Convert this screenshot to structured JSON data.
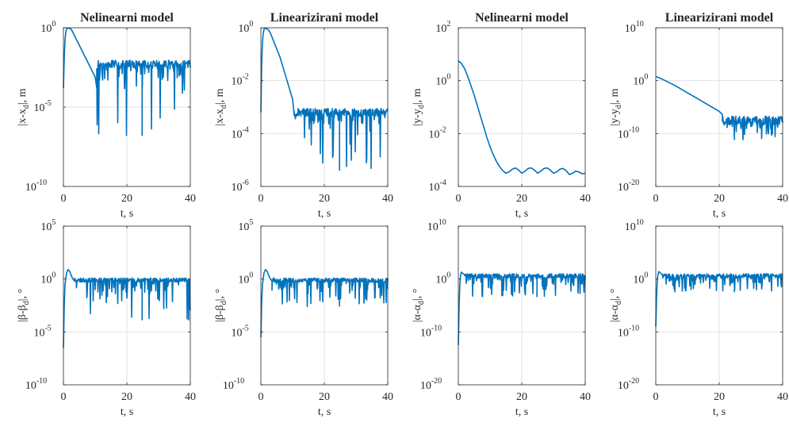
{
  "chart_data": [
    {
      "type": "line",
      "title": "Nelinearni model",
      "xlabel": "t, s",
      "ylabel": {
        "pre": "|x-x",
        "sub": "d",
        "post": "|, m"
      },
      "xlim": [
        0,
        40
      ],
      "xticks": [
        "0",
        "20",
        "40"
      ],
      "ylim_exp": [
        -10,
        0
      ],
      "yticks": [
        {
          "base": "10",
          "exp": "-10",
          "e": -10
        },
        {
          "base": "10",
          "exp": "-5",
          "e": -5
        },
        {
          "base": "10",
          "exp": "0",
          "e": 0
        }
      ],
      "grid": true,
      "color": "#0072BD",
      "series": [
        {
          "x": [
            0,
            0.3,
            0.6,
            1,
            1.5,
            2,
            2.5,
            3,
            4,
            5,
            6,
            7,
            8,
            9,
            10,
            10.5,
            11,
            12,
            14,
            16,
            18,
            20,
            22,
            24,
            26,
            28,
            30,
            32,
            34,
            36,
            38,
            40
          ],
          "y_log10": [
            -3.8,
            -1.5,
            -0.4,
            -0.05,
            0,
            -0.05,
            -0.1,
            -0.3,
            -0.7,
            -1.1,
            -1.5,
            -1.9,
            -2.3,
            -2.7,
            -3.1,
            -3.8,
            -2.2,
            -2.2,
            -2.2,
            -2.2,
            -2.2,
            -2.2,
            -2.2,
            -2.2,
            -2.2,
            -2.2,
            -2.2,
            -2.2,
            -2.2,
            -2.2,
            -2.2,
            -2.2
          ]
        }
      ],
      "noise": {
        "from": 10.5,
        "center": -2.3,
        "amp": 0.25,
        "spike_depth": [
          -3.3,
          -6.8
        ],
        "spike_min": -6.8
      }
    },
    {
      "type": "line",
      "title": "Linearizirani model",
      "xlabel": "t, s",
      "ylabel": {
        "pre": "|x-x",
        "sub": "d",
        "post": "|, m"
      },
      "xlim": [
        0,
        40
      ],
      "xticks": [
        "0",
        "20",
        "40"
      ],
      "ylim_exp": [
        -6,
        0
      ],
      "yticks": [
        {
          "base": "10",
          "exp": "-6",
          "e": -6
        },
        {
          "base": "10",
          "exp": "-4",
          "e": -4
        },
        {
          "base": "10",
          "exp": "-2",
          "e": -2
        },
        {
          "base": "10",
          "exp": "0",
          "e": 0
        }
      ],
      "grid": true,
      "color": "#0072BD",
      "series": [
        {
          "x": [
            0,
            0.3,
            0.6,
            1,
            1.5,
            2,
            2.5,
            3,
            4,
            5,
            6,
            7,
            8,
            9,
            10,
            10.5,
            11,
            12,
            14,
            16,
            18,
            20,
            22,
            24,
            26,
            28,
            30,
            32,
            34,
            36,
            38,
            40
          ],
          "y_log10": [
            -3.2,
            -1.0,
            -0.3,
            -0.05,
            0,
            -0.05,
            -0.1,
            -0.2,
            -0.5,
            -0.8,
            -1.1,
            -1.5,
            -1.9,
            -2.3,
            -2.7,
            -3.3,
            -3.1,
            -3.1,
            -3.1,
            -3.1,
            -3.1,
            -3.1,
            -3.1,
            -3.1,
            -3.1,
            -3.1,
            -3.1,
            -3.1,
            -3.1,
            -3.1,
            -3.1,
            -3.1
          ]
        }
      ],
      "noise": {
        "from": 10.5,
        "center": -3.2,
        "amp": 0.15,
        "spike_depth": [
          -3.6,
          -5.4
        ],
        "spike_min": -5.4
      }
    },
    {
      "type": "line",
      "title": "Nelinearni model",
      "xlabel": "t, s",
      "ylabel": {
        "pre": "|y-y",
        "sub": "d",
        "post": "|, m"
      },
      "xlim": [
        0,
        40
      ],
      "xticks": [
        "0",
        "20",
        "40"
      ],
      "ylim_exp": [
        -4,
        2
      ],
      "yticks": [
        {
          "base": "10",
          "exp": "-4",
          "e": -4
        },
        {
          "base": "10",
          "exp": "-2",
          "e": -2
        },
        {
          "base": "10",
          "exp": "0",
          "e": 0
        },
        {
          "base": "10",
          "exp": "2",
          "e": 2
        }
      ],
      "grid": true,
      "color": "#0072BD",
      "series": [
        {
          "x": [
            0,
            1,
            2,
            3,
            4,
            5,
            6,
            7,
            8,
            9,
            10,
            11,
            12,
            13,
            14,
            15,
            16,
            17,
            18,
            19,
            20,
            21,
            22,
            23,
            24,
            25,
            26,
            27,
            28,
            29,
            30,
            31,
            32,
            33,
            34,
            35,
            36,
            37,
            38,
            39,
            40
          ],
          "y_log10": [
            0.75,
            0.65,
            0.45,
            0.15,
            -0.2,
            -0.55,
            -0.95,
            -1.35,
            -1.75,
            -2.15,
            -2.5,
            -2.8,
            -3.05,
            -3.25,
            -3.4,
            -3.5,
            -3.45,
            -3.35,
            -3.3,
            -3.38,
            -3.5,
            -3.42,
            -3.32,
            -3.3,
            -3.38,
            -3.5,
            -3.42,
            -3.32,
            -3.3,
            -3.38,
            -3.5,
            -3.45,
            -3.35,
            -3.32,
            -3.4,
            -3.55,
            -3.5,
            -3.42,
            -3.45,
            -3.52,
            -3.5
          ]
        }
      ]
    },
    {
      "type": "line",
      "title": "Linearizirani model",
      "xlabel": "t, s",
      "ylabel": {
        "pre": "|y-y",
        "sub": "d",
        "post": "|, m"
      },
      "xlim": [
        0,
        40
      ],
      "xticks": [
        "0",
        "20",
        "40"
      ],
      "ylim_exp": [
        -20,
        10
      ],
      "yticks": [
        {
          "base": "10",
          "exp": "-20",
          "e": -20
        },
        {
          "base": "10",
          "exp": "-10",
          "e": -10
        },
        {
          "base": "10",
          "exp": "0",
          "e": 0
        },
        {
          "base": "10",
          "exp": "10",
          "e": 10
        }
      ],
      "grid": true,
      "color": "#0072BD",
      "series": [
        {
          "x": [
            0,
            2,
            4,
            6,
            8,
            10,
            12,
            14,
            16,
            18,
            20,
            22,
            24,
            26,
            28,
            30,
            32,
            34,
            36,
            38,
            40
          ],
          "y_log10": [
            0.8,
            0.3,
            -0.3,
            -0.9,
            -1.6,
            -2.3,
            -3,
            -3.7,
            -4.4,
            -5.1,
            -5.8,
            -7,
            -7.3,
            -7.3,
            -7.3,
            -7.3,
            -7.3,
            -7.3,
            -7.3,
            -7.3,
            -7.3
          ]
        }
      ],
      "noise": {
        "from": 21,
        "center": -7.5,
        "amp": 0.8,
        "spike_depth": [
          -8.5,
          -11.2
        ],
        "spike_min": -11.2
      }
    },
    {
      "type": "line",
      "title": "",
      "xlabel": "t, s",
      "ylabel": {
        "pre": "|β-β",
        "sub": "d",
        "post": "|, °"
      },
      "xlim": [
        0,
        40
      ],
      "xticks": [
        "0",
        "20",
        "40"
      ],
      "ylim_exp": [
        -10,
        5
      ],
      "yticks": [
        {
          "base": "10",
          "exp": "-10",
          "e": -10
        },
        {
          "base": "10",
          "exp": "-5",
          "e": -5
        },
        {
          "base": "10",
          "exp": "0",
          "e": 0
        },
        {
          "base": "10",
          "exp": "5",
          "e": 5
        }
      ],
      "grid": true,
      "color": "#0072BD",
      "series": [
        {
          "x": [
            0,
            0.2,
            0.5,
            1,
            1.5,
            2,
            2.5,
            3,
            3.5,
            4,
            5,
            6,
            40
          ],
          "y_log10": [
            -6.5,
            -3,
            -0.5,
            0.6,
            0.9,
            0.7,
            0.3,
            0,
            -0.2,
            -0.1,
            -0.1,
            -0.1,
            -0.1
          ]
        }
      ],
      "noise": {
        "from": 3.5,
        "center": -0.1,
        "amp": 0.2,
        "spike_depth": [
          -1.5,
          -3.9
        ],
        "spike_min": -3.9
      }
    },
    {
      "type": "line",
      "title": "",
      "xlabel": "t, s",
      "ylabel": {
        "pre": "|β-β",
        "sub": "d",
        "post": "|, °"
      },
      "xlim": [
        0,
        40
      ],
      "xticks": [
        "0",
        "20",
        "40"
      ],
      "ylim_exp": [
        -10,
        5
      ],
      "yticks": [
        {
          "base": "10",
          "exp": "-10",
          "e": -10
        },
        {
          "base": "10",
          "exp": "-5",
          "e": -5
        },
        {
          "base": "10",
          "exp": "0",
          "e": 0
        },
        {
          "base": "10",
          "exp": "5",
          "e": 5
        }
      ],
      "grid": true,
      "color": "#0072BD",
      "series": [
        {
          "x": [
            0,
            0.2,
            0.5,
            1,
            1.5,
            2,
            2.5,
            3,
            3.5,
            4,
            5,
            6,
            40
          ],
          "y_log10": [
            -5.5,
            -2.5,
            -0.5,
            0.6,
            0.9,
            0.7,
            0.3,
            0,
            -0.2,
            -0.1,
            -0.1,
            -0.1,
            -0.1
          ]
        }
      ],
      "noise": {
        "from": 3.5,
        "center": -0.1,
        "amp": 0.2,
        "spike_depth": [
          -1.2,
          -2.6
        ],
        "spike_min": -2.6
      }
    },
    {
      "type": "line",
      "title": "",
      "xlabel": "t, s",
      "ylabel": {
        "pre": "|α-α",
        "sub": "d",
        "post": "|, °"
      },
      "xlim": [
        0,
        40
      ],
      "xticks": [
        "0",
        "20",
        "40"
      ],
      "ylim_exp": [
        -20,
        10
      ],
      "yticks": [
        {
          "base": "10",
          "exp": "-20",
          "e": -20
        },
        {
          "base": "10",
          "exp": "-10",
          "e": -10
        },
        {
          "base": "10",
          "exp": "0",
          "e": 0
        },
        {
          "base": "10",
          "exp": "10",
          "e": 10
        }
      ],
      "grid": true,
      "color": "#0072BD",
      "series": [
        {
          "x": [
            0,
            0.2,
            0.4,
            0.7,
            1,
            1.5,
            2,
            40
          ],
          "y_log10": [
            -12.5,
            -6,
            -1.5,
            0.8,
            1.3,
            1,
            0.8,
            0.8
          ]
        }
      ],
      "noise": {
        "from": 2,
        "center": 0.6,
        "amp": 0.4,
        "spike_depth": [
          -1.5,
          -3.4
        ],
        "spike_min": -3.4
      }
    },
    {
      "type": "line",
      "title": "",
      "xlabel": "t, s",
      "ylabel": {
        "pre": "|α-α",
        "sub": "d",
        "post": "|, °"
      },
      "xlim": [
        0,
        40
      ],
      "xticks": [
        "0",
        "20",
        "40"
      ],
      "ylim_exp": [
        -20,
        10
      ],
      "yticks": [
        {
          "base": "10",
          "exp": "-20",
          "e": -20
        },
        {
          "base": "10",
          "exp": "-10",
          "e": -10
        },
        {
          "base": "10",
          "exp": "0",
          "e": 0
        },
        {
          "base": "10",
          "exp": "10",
          "e": 10
        }
      ],
      "grid": true,
      "color": "#0072BD",
      "series": [
        {
          "x": [
            0,
            0.2,
            0.4,
            0.7,
            1,
            1.5,
            2,
            40
          ],
          "y_log10": [
            -9,
            -4,
            -0.5,
            0.9,
            1.4,
            1.1,
            0.8,
            0.8
          ]
        }
      ],
      "noise": {
        "from": 2,
        "center": 0.6,
        "amp": 0.4,
        "spike_depth": [
          -1,
          -2.5
        ],
        "spike_min": -2.5
      }
    }
  ]
}
